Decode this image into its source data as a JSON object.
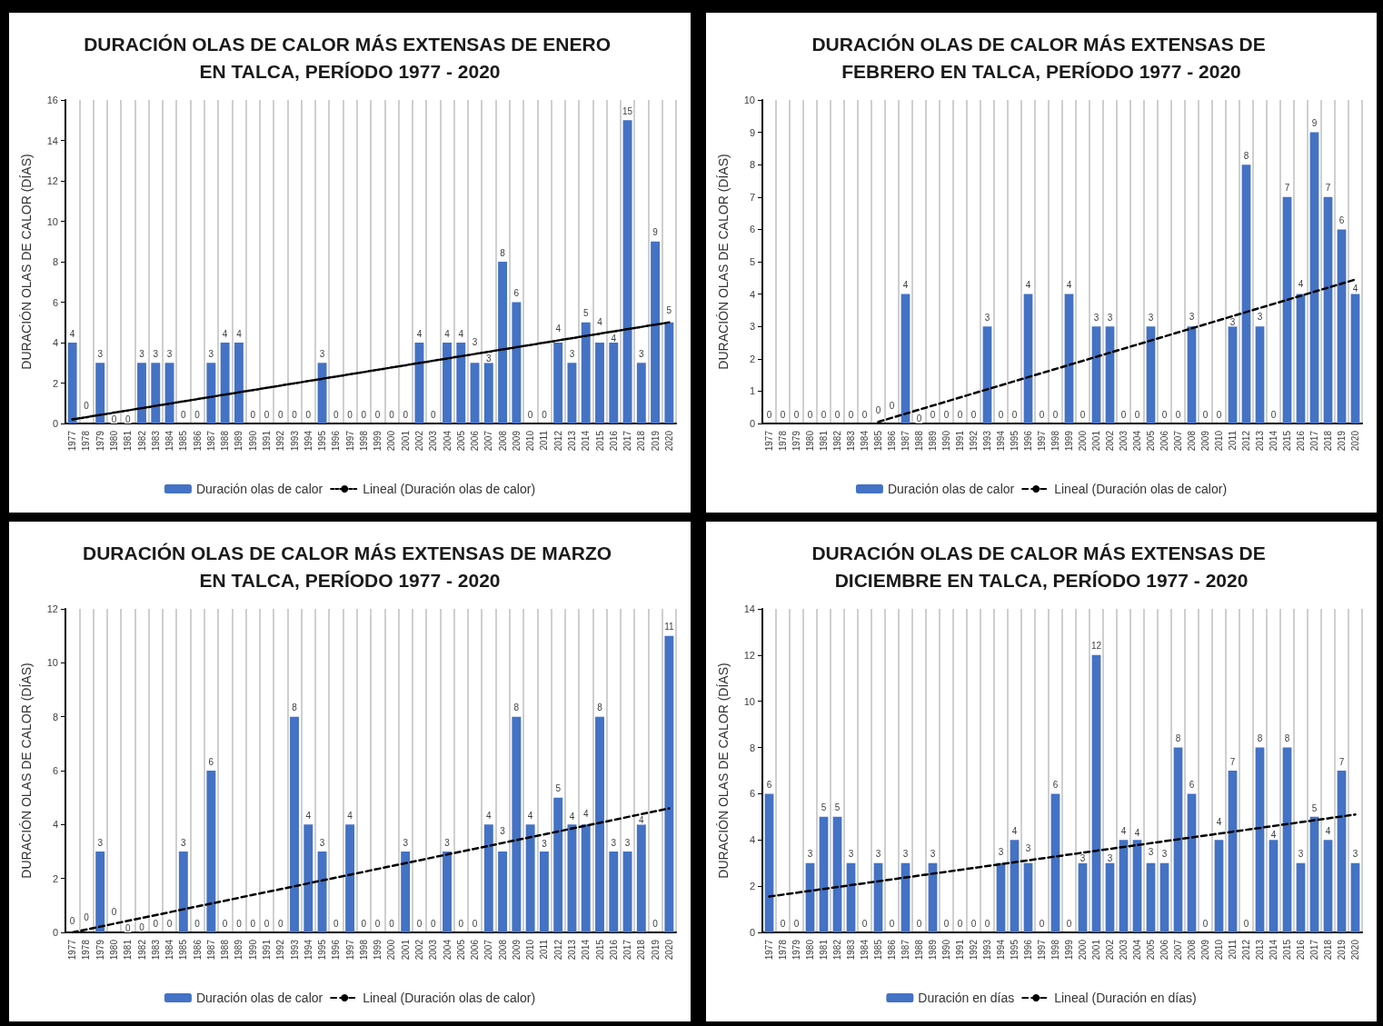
{
  "chart_data": [
    {
      "type": "bar",
      "title": "DURACIÓN OLAS DE CALOR MÁS EXTENSAS DE ENERO EN TALCA, PERÍODO 1977 - 2020",
      "ylabel": "DURACIÓN OLAS DE CALOR (DÍAS)",
      "categories": [
        "1977",
        "1978",
        "1979",
        "1980",
        "1981",
        "1982",
        "1983",
        "1984",
        "1985",
        "1986",
        "1987",
        "1988",
        "1989",
        "1990",
        "1991",
        "1992",
        "1993",
        "1994",
        "1995",
        "1996",
        "1997",
        "1998",
        "1999",
        "2000",
        "2001",
        "2002",
        "2003",
        "2004",
        "2005",
        "2006",
        "2007",
        "2008",
        "2009",
        "2010",
        "2011",
        "2012",
        "2013",
        "2014",
        "2015",
        "2016",
        "2017",
        "2018",
        "2019",
        "2020"
      ],
      "series": [
        {
          "name": "Duración olas de calor",
          "color": "#4472c4",
          "values": [
            4,
            0,
            3,
            0,
            0,
            3,
            3,
            3,
            0,
            0,
            3,
            4,
            4,
            0,
            0,
            0,
            0,
            0,
            3,
            0,
            0,
            0,
            0,
            0,
            0,
            4,
            0,
            4,
            4,
            3,
            3,
            8,
            6,
            0,
            0,
            4,
            3,
            5,
            4,
            4,
            15,
            3,
            9,
            5
          ]
        },
        {
          "name": "Lineal (Duración olas de calor)",
          "type": "line",
          "color": "#000000",
          "line_style": "dotted",
          "values": [
            0.2,
            null,
            null,
            null,
            null,
            null,
            null,
            null,
            null,
            null,
            null,
            null,
            null,
            null,
            null,
            null,
            null,
            null,
            null,
            null,
            null,
            null,
            null,
            null,
            null,
            null,
            null,
            null,
            null,
            null,
            null,
            null,
            null,
            null,
            null,
            null,
            null,
            null,
            null,
            null,
            null,
            null,
            null,
            5.0
          ],
          "value_labels": [
            null,
            null,
            null,
            null,
            null,
            null,
            null,
            null,
            null,
            null,
            null,
            null,
            null,
            null,
            null,
            null,
            null,
            null,
            null,
            null,
            null,
            null,
            null,
            null,
            null,
            null,
            null,
            null,
            null,
            null,
            null,
            null,
            null,
            null,
            null,
            null,
            null,
            null,
            null,
            null,
            null,
            null,
            null,
            null
          ]
        }
      ],
      "ylim": [
        0,
        16
      ],
      "yticks": [
        0,
        2,
        4,
        6,
        8,
        10,
        12,
        14,
        16
      ],
      "grid": "x",
      "legend": "bottom",
      "data_labels": true
    },
    {
      "type": "bar",
      "title": "DURACIÓN OLAS DE CALOR MÁS EXTENSAS DE FEBRERO EN TALCA, PERÍODO 1977 - 2020",
      "ylabel": "DURACIÓN OLAS DE CALOR (DÍAS)",
      "categories": [
        "1977",
        "1978",
        "1979",
        "1980",
        "1981",
        "1982",
        "1983",
        "1984",
        "1985",
        "1986",
        "1987",
        "1988",
        "1989",
        "1990",
        "1991",
        "1992",
        "1993",
        "1994",
        "1995",
        "1996",
        "1997",
        "1998",
        "1999",
        "2000",
        "2001",
        "2002",
        "2003",
        "2004",
        "2005",
        "2006",
        "2007",
        "2008",
        "2009",
        "2010",
        "2011",
        "2012",
        "2013",
        "2014",
        "2015",
        "2016",
        "2017",
        "2018",
        "2019",
        "2020"
      ],
      "series": [
        {
          "name": "Duración olas de calor",
          "color": "#4472c4",
          "values": [
            0,
            0,
            0,
            0,
            0,
            0,
            0,
            0,
            0,
            0,
            4,
            0,
            0,
            0,
            0,
            0,
            3,
            0,
            0,
            4,
            0,
            0,
            4,
            0,
            3,
            3,
            0,
            0,
            3,
            0,
            0,
            3,
            0,
            0,
            3,
            8,
            3,
            0,
            7,
            4,
            9,
            7,
            6,
            4
          ]
        },
        {
          "name": "Lineal (Duración olas de calor)",
          "type": "line",
          "color": "#000000",
          "line_style": "dashed",
          "values": [
            null,
            null,
            null,
            null,
            null,
            null,
            null,
            null,
            0.05,
            null,
            null,
            null,
            null,
            null,
            null,
            null,
            null,
            null,
            null,
            null,
            null,
            null,
            null,
            null,
            null,
            null,
            null,
            null,
            null,
            null,
            null,
            null,
            null,
            null,
            null,
            null,
            null,
            null,
            null,
            null,
            null,
            null,
            null,
            4.45
          ],
          "value_labels": [
            null,
            null,
            null,
            null,
            null,
            null,
            null,
            null,
            null,
            null,
            null,
            null,
            null,
            null,
            null,
            null,
            null,
            null,
            null,
            null,
            null,
            null,
            null,
            null,
            null,
            null,
            null,
            null,
            null,
            null,
            null,
            null,
            null,
            null,
            null,
            null,
            null,
            null,
            null,
            null,
            null,
            null,
            null,
            null
          ]
        }
      ],
      "ylim": [
        0,
        10
      ],
      "yticks": [
        0,
        1,
        2,
        3,
        4,
        5,
        6,
        7,
        8,
        9,
        10
      ],
      "grid": "x",
      "legend": "bottom",
      "data_labels": true
    },
    {
      "type": "bar",
      "title": "DURACIÓN OLAS DE CALOR MÁS EXTENSAS DE MARZO EN TALCA, PERÍODO 1977 - 2020",
      "ylabel": "DURACIÓN OLAS DE CALOR (DÍAS)",
      "categories": [
        "1977",
        "1978",
        "1979",
        "1980",
        "1981",
        "1982",
        "1983",
        "1984",
        "1985",
        "1986",
        "1987",
        "1988",
        "1989",
        "1990",
        "1991",
        "1992",
        "1993",
        "1994",
        "1995",
        "1996",
        "1997",
        "1998",
        "1999",
        "2000",
        "2001",
        "2002",
        "2003",
        "2004",
        "2005",
        "2006",
        "2007",
        "2008",
        "2009",
        "2010",
        "2011",
        "2012",
        "2013",
        "2014",
        "2015",
        "2016",
        "2017",
        "2018",
        "2019",
        "2020"
      ],
      "series": [
        {
          "name": "Duración olas de calor",
          "color": "#4472c4",
          "values": [
            0,
            0,
            3,
            0,
            0,
            0,
            0,
            0,
            3,
            0,
            6,
            0,
            0,
            0,
            0,
            0,
            8,
            4,
            3,
            0,
            4,
            0,
            0,
            0,
            3,
            0,
            0,
            3,
            0,
            0,
            4,
            3,
            8,
            4,
            3,
            5,
            4,
            4,
            8,
            3,
            3,
            4,
            0,
            11
          ]
        },
        {
          "name": "Lineal (Duración olas de calor)",
          "type": "line",
          "color": "#000000",
          "line_style": "dashed",
          "values": [
            0.0,
            null,
            null,
            null,
            null,
            null,
            null,
            null,
            null,
            null,
            null,
            null,
            null,
            null,
            null,
            null,
            null,
            null,
            null,
            null,
            null,
            null,
            null,
            null,
            null,
            null,
            null,
            null,
            null,
            null,
            null,
            null,
            null,
            null,
            null,
            null,
            null,
            null,
            null,
            null,
            null,
            null,
            null,
            4.6
          ],
          "value_labels": [
            null,
            null,
            null,
            null,
            null,
            null,
            null,
            null,
            null,
            null,
            null,
            null,
            null,
            null,
            null,
            null,
            null,
            null,
            null,
            null,
            null,
            null,
            null,
            null,
            null,
            null,
            null,
            null,
            null,
            null,
            null,
            null,
            null,
            null,
            null,
            null,
            null,
            null,
            null,
            null,
            null,
            null,
            null,
            null
          ]
        }
      ],
      "ylim": [
        0,
        12
      ],
      "yticks": [
        0,
        2,
        4,
        6,
        8,
        10,
        12
      ],
      "grid": "x",
      "legend": "bottom",
      "data_labels": true
    },
    {
      "type": "bar",
      "title": "DURACIÓN OLAS DE CALOR MÁS EXTENSAS DE DICIEMBRE EN TALCA, PERÍODO 1977 - 2020",
      "ylabel": "DURACIÓN OLAS DE CALOR (DÍAS)",
      "categories": [
        "1977",
        "1978",
        "1979",
        "1980",
        "1981",
        "1982",
        "1983",
        "1984",
        "1985",
        "1986",
        "1987",
        "1988",
        "1989",
        "1990",
        "1991",
        "1992",
        "1993",
        "1994",
        "1995",
        "1996",
        "1997",
        "1998",
        "1999",
        "2000",
        "2001",
        "2002",
        "2003",
        "2004",
        "2005",
        "2006",
        "2007",
        "2008",
        "2009",
        "2010",
        "2011",
        "2012",
        "2013",
        "2014",
        "2015",
        "2016",
        "2017",
        "2018",
        "2019",
        "2020"
      ],
      "series": [
        {
          "name": "Duración en días",
          "color": "#4472c4",
          "values": [
            6,
            0,
            0,
            3,
            5,
            5,
            3,
            0,
            3,
            0,
            3,
            0,
            3,
            0,
            0,
            0,
            0,
            3,
            4,
            3,
            0,
            6,
            0,
            3,
            12,
            3,
            4,
            4,
            3,
            3,
            8,
            6,
            0,
            4,
            7,
            0,
            8,
            4,
            8,
            3,
            5,
            4,
            7,
            3
          ]
        },
        {
          "name": "Lineal (Duración en días)",
          "type": "line",
          "color": "#000000",
          "line_style": "dashed",
          "values": [
            1.55,
            null,
            null,
            null,
            null,
            null,
            null,
            null,
            null,
            null,
            null,
            null,
            null,
            null,
            null,
            null,
            null,
            null,
            null,
            null,
            null,
            null,
            null,
            null,
            null,
            null,
            null,
            null,
            null,
            null,
            null,
            null,
            null,
            null,
            null,
            null,
            null,
            null,
            null,
            null,
            null,
            null,
            null,
            5.1
          ],
          "value_labels": [
            null,
            null,
            null,
            null,
            null,
            null,
            null,
            null,
            null,
            null,
            null,
            null,
            null,
            null,
            null,
            null,
            null,
            null,
            null,
            null,
            null,
            null,
            null,
            null,
            null,
            null,
            null,
            null,
            null,
            null,
            null,
            null,
            null,
            null,
            null,
            null,
            null,
            null,
            null,
            null,
            null,
            null,
            null,
            null
          ]
        }
      ],
      "ylim": [
        0,
        14
      ],
      "yticks": [
        0,
        2,
        4,
        6,
        8,
        10,
        12,
        14
      ],
      "grid": "x",
      "legend": "bottom",
      "data_labels": true
    }
  ]
}
